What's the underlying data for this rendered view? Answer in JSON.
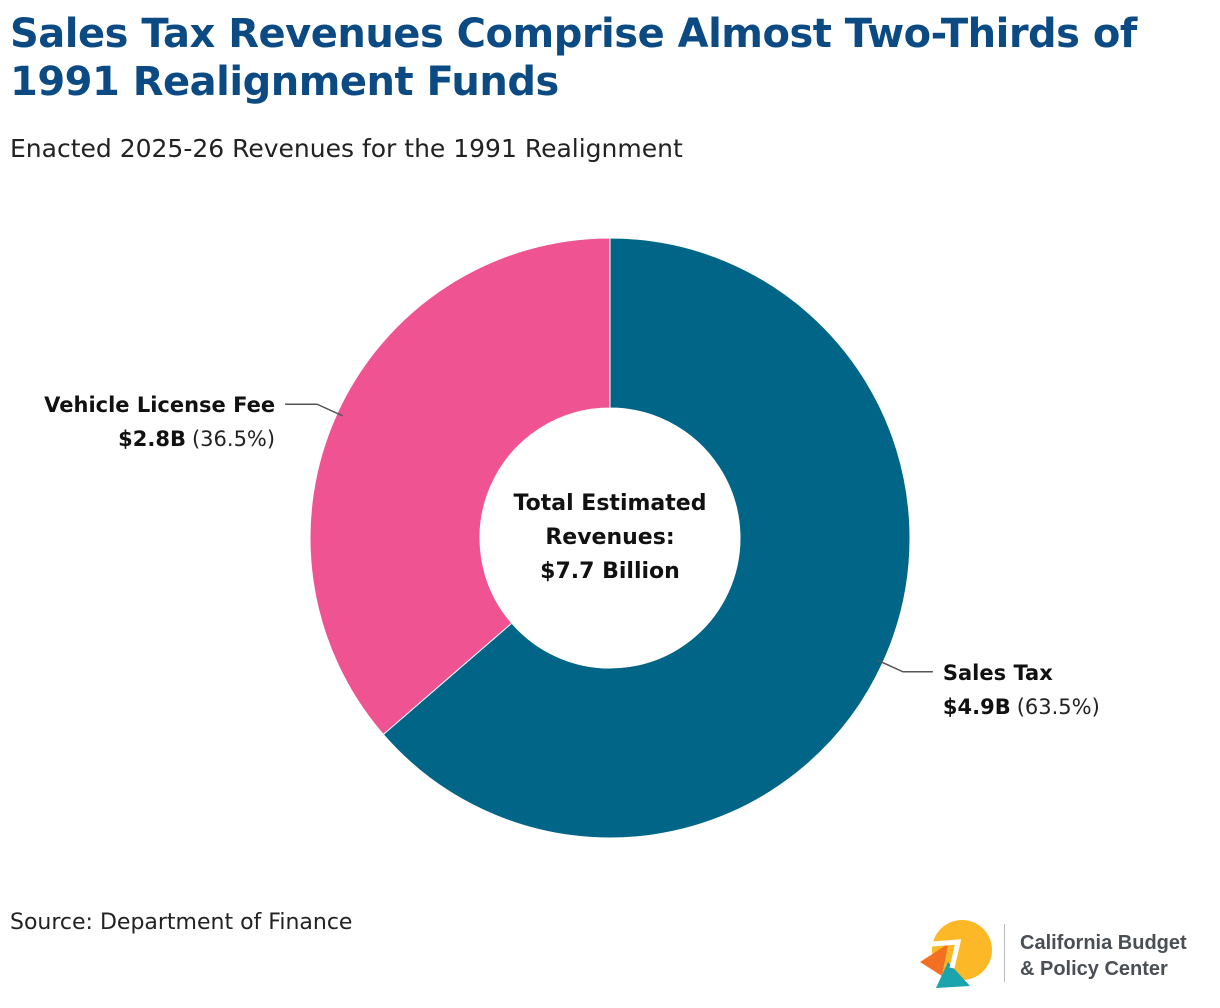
{
  "title": "Sales Tax Revenues Comprise Almost Two-Thirds of 1991 Realignment Funds",
  "subtitle": "Enacted 2025-26 Revenues for the 1991 Realignment",
  "source": "Source: Department of Finance",
  "logo": {
    "line1": "California Budget",
    "line2": "& Policy Center"
  },
  "chart_data": {
    "type": "pie",
    "variant": "donut",
    "title": "Enacted 2025-26 Revenues for the 1991 Realignment",
    "center_label": [
      "Total Estimated",
      "Revenues:",
      "$7.7 Billion"
    ],
    "slices": [
      {
        "name": "Sales Tax",
        "value": 4.9,
        "value_label": "$4.9B",
        "percent": 63.5,
        "percent_label": "(63.5%)",
        "color": "#006587",
        "label_side": "right"
      },
      {
        "name": "Vehicle License Fee",
        "value": 2.8,
        "value_label": "$2.8B",
        "percent": 36.5,
        "percent_label": "(36.5%)",
        "color": "#ef5391",
        "label_side": "left"
      }
    ]
  },
  "colors": {
    "title": "#0b4a82",
    "text": "#222222",
    "leader_line": "#555555",
    "logo_orange": "#f36f21",
    "logo_yellow": "#fdb827",
    "logo_teal": "#1ba3ae"
  }
}
